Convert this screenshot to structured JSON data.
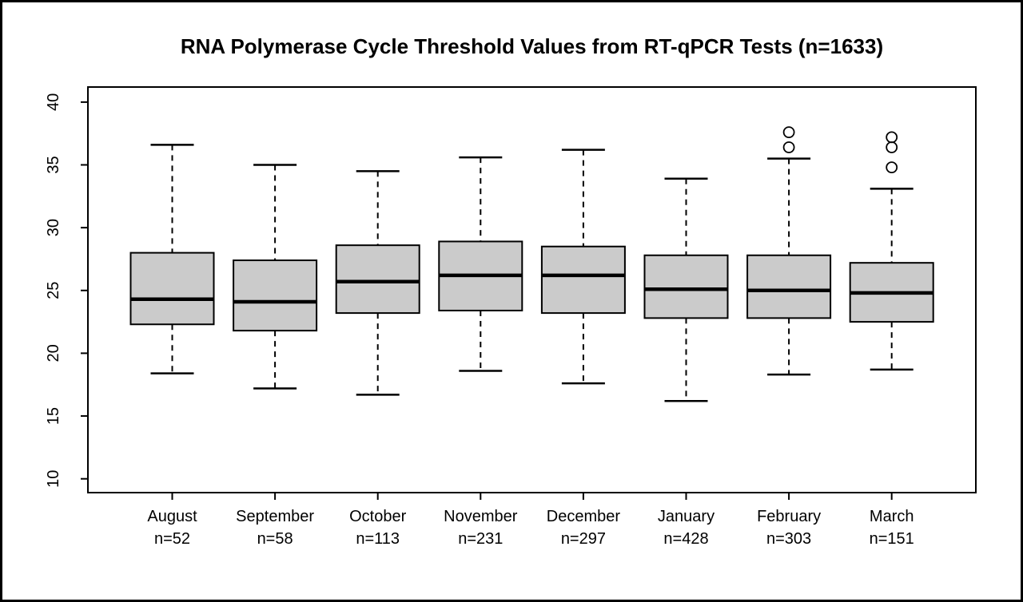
{
  "chart_data": {
    "type": "boxplot",
    "title": "RNA Polymerase Cycle Threshold Values from RT-qPCR Tests (n=1633)",
    "xlabel": "",
    "ylabel": "",
    "ylim": [
      8.9,
      41.2
    ],
    "y_ticks": [
      10,
      15,
      20,
      25,
      30,
      35,
      40
    ],
    "grid": false,
    "legend": "none",
    "box_fill_color": "#cbcbcb",
    "line_color": "#000000",
    "background_color": "#ffffff",
    "total_n": 1633,
    "groups": [
      {
        "label": "August",
        "n_label": "n=52",
        "n": 52,
        "low": 18.4,
        "q1": 22.3,
        "median": 24.3,
        "q3": 28.0,
        "high": 36.6,
        "outliers": []
      },
      {
        "label": "September",
        "n_label": "n=58",
        "n": 58,
        "low": 17.2,
        "q1": 21.8,
        "median": 24.1,
        "q3": 27.4,
        "high": 35.0,
        "outliers": []
      },
      {
        "label": "October",
        "n_label": "n=113",
        "n": 113,
        "low": 16.7,
        "q1": 23.2,
        "median": 25.7,
        "q3": 28.6,
        "high": 34.5,
        "outliers": []
      },
      {
        "label": "November",
        "n_label": "n=231",
        "n": 231,
        "low": 18.6,
        "q1": 23.4,
        "median": 26.2,
        "q3": 28.9,
        "high": 35.6,
        "outliers": []
      },
      {
        "label": "December",
        "n_label": "n=297",
        "n": 297,
        "low": 17.6,
        "q1": 23.2,
        "median": 26.2,
        "q3": 28.5,
        "high": 36.2,
        "outliers": []
      },
      {
        "label": "January",
        "n_label": "n=428",
        "n": 428,
        "low": 16.2,
        "q1": 22.8,
        "median": 25.1,
        "q3": 27.8,
        "high": 33.9,
        "outliers": []
      },
      {
        "label": "February",
        "n_label": "n=303",
        "n": 303,
        "low": 18.3,
        "q1": 22.8,
        "median": 25.0,
        "q3": 27.8,
        "high": 35.5,
        "outliers": [
          36.4,
          37.6
        ]
      },
      {
        "label": "March",
        "n_label": "n=151",
        "n": 151,
        "low": 18.7,
        "q1": 22.5,
        "median": 24.8,
        "q3": 27.2,
        "high": 33.1,
        "outliers": [
          34.8,
          36.4,
          37.2
        ]
      }
    ]
  }
}
